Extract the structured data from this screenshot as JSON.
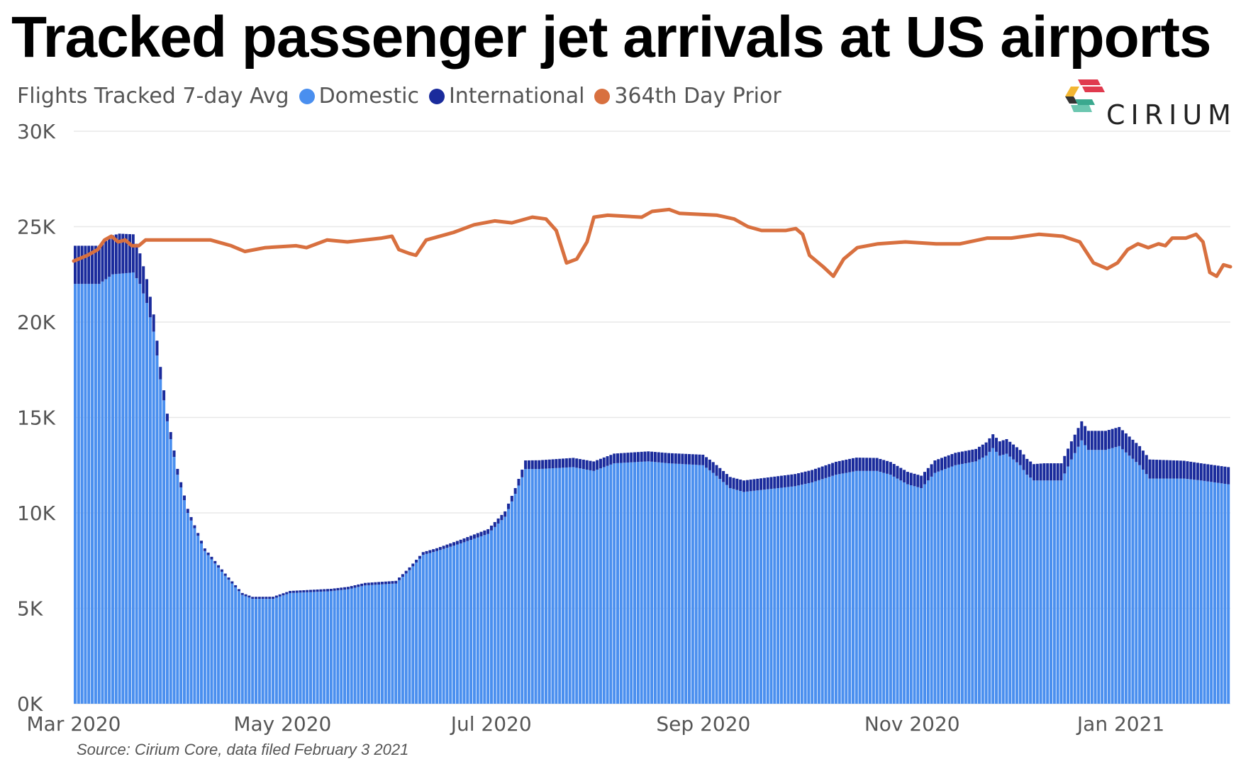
{
  "title": "Tracked passenger jet arrivals at US airports",
  "legend": {
    "label": "Flights Tracked 7-day Avg",
    "items": [
      {
        "name": "Domestic",
        "color": "#4a8fef"
      },
      {
        "name": "International",
        "color": "#1a2b9c"
      },
      {
        "name": "364th Day Prior",
        "color": "#d8703f"
      }
    ]
  },
  "brand": "CIRIUM",
  "source": "Source: Cirium Core, data filed February 3 2021",
  "chart_data": {
    "type": "bar",
    "stacked": true,
    "x_range": [
      "2020-03-01",
      "2021-02-02"
    ],
    "ylim": [
      0,
      30000
    ],
    "yticks": [
      {
        "value": 0,
        "label": "0K"
      },
      {
        "value": 5000,
        "label": "5K"
      },
      {
        "value": 10000,
        "label": "10K"
      },
      {
        "value": 15000,
        "label": "15K"
      },
      {
        "value": 20000,
        "label": "20K"
      },
      {
        "value": 25000,
        "label": "25K"
      },
      {
        "value": 30000,
        "label": "30K"
      }
    ],
    "xticks": [
      {
        "date": "2020-03-01",
        "label": "Mar 2020"
      },
      {
        "date": "2020-05-01",
        "label": "May 2020"
      },
      {
        "date": "2020-07-01",
        "label": "Jul 2020"
      },
      {
        "date": "2020-09-01",
        "label": "Sep 2020"
      },
      {
        "date": "2020-11-01",
        "label": "Nov 2020"
      },
      {
        "date": "2021-01-01",
        "label": "Jan 2021"
      }
    ],
    "grid": true,
    "legend_position": "top-left",
    "series": [
      {
        "name": "Domestic",
        "type": "bar",
        "color": "#4a8fef",
        "points": [
          [
            "2020-03-01",
            22000
          ],
          [
            "2020-03-08",
            22000
          ],
          [
            "2020-03-12",
            22500
          ],
          [
            "2020-03-18",
            22600
          ],
          [
            "2020-03-20",
            22000
          ],
          [
            "2020-03-22",
            21000
          ],
          [
            "2020-03-24",
            19500
          ],
          [
            "2020-03-26",
            17000
          ],
          [
            "2020-03-28",
            14800
          ],
          [
            "2020-03-31",
            12000
          ],
          [
            "2020-04-03",
            10000
          ],
          [
            "2020-04-08",
            8000
          ],
          [
            "2020-04-14",
            6700
          ],
          [
            "2020-04-19",
            5700
          ],
          [
            "2020-04-22",
            5500
          ],
          [
            "2020-04-28",
            5500
          ],
          [
            "2020-05-03",
            5800
          ],
          [
            "2020-05-15",
            5900
          ],
          [
            "2020-05-20",
            6000
          ],
          [
            "2020-05-25",
            6200
          ],
          [
            "2020-06-03",
            6300
          ],
          [
            "2020-06-07",
            7000
          ],
          [
            "2020-06-11",
            7800
          ],
          [
            "2020-06-15",
            8000
          ],
          [
            "2020-06-22",
            8400
          ],
          [
            "2020-06-30",
            8900
          ],
          [
            "2020-07-05",
            9800
          ],
          [
            "2020-07-08",
            11000
          ],
          [
            "2020-07-11",
            12300
          ],
          [
            "2020-07-15",
            12300
          ],
          [
            "2020-07-25",
            12400
          ],
          [
            "2020-07-31",
            12200
          ],
          [
            "2020-08-06",
            12600
          ],
          [
            "2020-08-16",
            12700
          ],
          [
            "2020-08-22",
            12600
          ],
          [
            "2020-09-01",
            12500
          ],
          [
            "2020-09-04",
            12100
          ],
          [
            "2020-09-09",
            11300
          ],
          [
            "2020-09-13",
            11100
          ],
          [
            "2020-09-18",
            11200
          ],
          [
            "2020-09-28",
            11400
          ],
          [
            "2020-10-03",
            11600
          ],
          [
            "2020-10-10",
            12000
          ],
          [
            "2020-10-16",
            12200
          ],
          [
            "2020-10-22",
            12200
          ],
          [
            "2020-10-26",
            12000
          ],
          [
            "2020-10-31",
            11500
          ],
          [
            "2020-11-04",
            11300
          ],
          [
            "2020-11-08",
            12100
          ],
          [
            "2020-11-14",
            12500
          ],
          [
            "2020-11-20",
            12700
          ],
          [
            "2020-11-23",
            13000
          ],
          [
            "2020-11-25",
            13400
          ],
          [
            "2020-11-27",
            13000
          ],
          [
            "2020-11-29",
            13100
          ],
          [
            "2020-12-01",
            12800
          ],
          [
            "2020-12-03",
            12500
          ],
          [
            "2020-12-05",
            12000
          ],
          [
            "2020-12-07",
            11700
          ],
          [
            "2020-12-12",
            11700
          ],
          [
            "2020-12-15",
            11700
          ],
          [
            "2020-12-18",
            12800
          ],
          [
            "2020-12-21",
            13800
          ],
          [
            "2020-12-23",
            13300
          ],
          [
            "2020-12-28",
            13300
          ],
          [
            "2021-01-01",
            13500
          ],
          [
            "2021-01-04",
            13000
          ],
          [
            "2021-01-07",
            12500
          ],
          [
            "2021-01-10",
            11800
          ],
          [
            "2021-01-20",
            11800
          ],
          [
            "2021-01-25",
            11700
          ],
          [
            "2021-02-02",
            11500
          ]
        ]
      },
      {
        "name": "International",
        "type": "bar",
        "stacked_on": "Domestic",
        "color": "#1a2b9c",
        "points": [
          [
            "2020-03-01",
            2000
          ],
          [
            "2020-03-10",
            2000
          ],
          [
            "2020-03-14",
            2100
          ],
          [
            "2020-03-18",
            2000
          ],
          [
            "2020-03-20",
            1600
          ],
          [
            "2020-03-24",
            900
          ],
          [
            "2020-03-28",
            400
          ],
          [
            "2020-04-05",
            150
          ],
          [
            "2020-04-20",
            100
          ],
          [
            "2020-06-15",
            150
          ],
          [
            "2020-07-08",
            300
          ],
          [
            "2020-07-11",
            450
          ],
          [
            "2020-08-01",
            500
          ],
          [
            "2020-09-01",
            550
          ],
          [
            "2020-09-13",
            600
          ],
          [
            "2020-10-03",
            650
          ],
          [
            "2020-10-15",
            700
          ],
          [
            "2020-11-01",
            650
          ],
          [
            "2020-11-20",
            650
          ],
          [
            "2020-11-27",
            750
          ],
          [
            "2020-12-03",
            800
          ],
          [
            "2020-12-10",
            900
          ],
          [
            "2020-12-15",
            900
          ],
          [
            "2020-12-21",
            1000
          ],
          [
            "2021-01-04",
            1000
          ],
          [
            "2021-01-10",
            1000
          ],
          [
            "2021-01-25",
            900
          ],
          [
            "2021-02-02",
            900
          ]
        ]
      },
      {
        "name": "364th Day Prior",
        "type": "line",
        "color": "#d8703f",
        "points": [
          [
            "2020-03-01",
            23200
          ],
          [
            "2020-03-05",
            23500
          ],
          [
            "2020-03-08",
            23800
          ],
          [
            "2020-03-10",
            24300
          ],
          [
            "2020-03-12",
            24500
          ],
          [
            "2020-03-14",
            24200
          ],
          [
            "2020-03-16",
            24300
          ],
          [
            "2020-03-18",
            24000
          ],
          [
            "2020-03-20",
            24000
          ],
          [
            "2020-03-22",
            24300
          ],
          [
            "2020-04-01",
            24300
          ],
          [
            "2020-04-10",
            24300
          ],
          [
            "2020-04-16",
            24000
          ],
          [
            "2020-04-20",
            23700
          ],
          [
            "2020-04-26",
            23900
          ],
          [
            "2020-05-05",
            24000
          ],
          [
            "2020-05-08",
            23900
          ],
          [
            "2020-05-14",
            24300
          ],
          [
            "2020-05-20",
            24200
          ],
          [
            "2020-05-30",
            24400
          ],
          [
            "2020-06-02",
            24500
          ],
          [
            "2020-06-04",
            23800
          ],
          [
            "2020-06-07",
            23600
          ],
          [
            "2020-06-09",
            23500
          ],
          [
            "2020-06-12",
            24300
          ],
          [
            "2020-06-20",
            24700
          ],
          [
            "2020-06-26",
            25100
          ],
          [
            "2020-07-02",
            25300
          ],
          [
            "2020-07-07",
            25200
          ],
          [
            "2020-07-13",
            25500
          ],
          [
            "2020-07-17",
            25400
          ],
          [
            "2020-07-20",
            24800
          ],
          [
            "2020-07-23",
            23100
          ],
          [
            "2020-07-26",
            23300
          ],
          [
            "2020-07-29",
            24200
          ],
          [
            "2020-07-31",
            25500
          ],
          [
            "2020-08-04",
            25600
          ],
          [
            "2020-08-14",
            25500
          ],
          [
            "2020-08-17",
            25800
          ],
          [
            "2020-08-22",
            25900
          ],
          [
            "2020-08-25",
            25700
          ],
          [
            "2020-09-05",
            25600
          ],
          [
            "2020-09-10",
            25400
          ],
          [
            "2020-09-14",
            25000
          ],
          [
            "2020-09-18",
            24800
          ],
          [
            "2020-09-25",
            24800
          ],
          [
            "2020-09-28",
            24900
          ],
          [
            "2020-09-30",
            24600
          ],
          [
            "2020-10-02",
            23500
          ],
          [
            "2020-10-06",
            22900
          ],
          [
            "2020-10-09",
            22400
          ],
          [
            "2020-10-12",
            23300
          ],
          [
            "2020-10-16",
            23900
          ],
          [
            "2020-10-22",
            24100
          ],
          [
            "2020-10-30",
            24200
          ],
          [
            "2020-11-08",
            24100
          ],
          [
            "2020-11-15",
            24100
          ],
          [
            "2020-11-23",
            24400
          ],
          [
            "2020-11-30",
            24400
          ],
          [
            "2020-12-08",
            24600
          ],
          [
            "2020-12-15",
            24500
          ],
          [
            "2020-12-20",
            24200
          ],
          [
            "2020-12-24",
            23100
          ],
          [
            "2020-12-28",
            22800
          ],
          [
            "2020-12-31",
            23100
          ],
          [
            "2021-01-03",
            23800
          ],
          [
            "2021-01-06",
            24100
          ],
          [
            "2021-01-09",
            23900
          ],
          [
            "2021-01-12",
            24100
          ],
          [
            "2021-01-14",
            24000
          ],
          [
            "2021-01-16",
            24400
          ],
          [
            "2021-01-20",
            24400
          ],
          [
            "2021-01-23",
            24600
          ],
          [
            "2021-01-25",
            24200
          ],
          [
            "2021-01-27",
            22600
          ],
          [
            "2021-01-29",
            22400
          ],
          [
            "2021-01-31",
            23000
          ],
          [
            "2021-02-02",
            22900
          ]
        ]
      }
    ]
  }
}
